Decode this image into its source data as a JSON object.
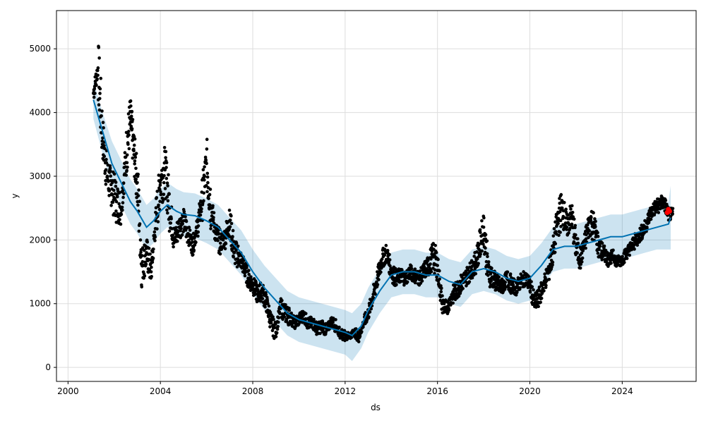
{
  "chart_data": {
    "type": "line",
    "xlabel": "ds",
    "ylabel": "y",
    "xlim": [
      1999.5,
      2027.2
    ],
    "ylim": [
      -220,
      5600
    ],
    "grid": true,
    "x_ticks": [
      2000,
      2004,
      2008,
      2012,
      2016,
      2020,
      2024
    ],
    "x_tick_labels": [
      "2000",
      "2004",
      "2008",
      "2012",
      "2016",
      "2020",
      "2024"
    ],
    "y_ticks": [
      0,
      1000,
      2000,
      3000,
      4000,
      5000
    ],
    "y_tick_labels": [
      "0",
      "1000",
      "2000",
      "3000",
      "4000",
      "5000"
    ],
    "colors": {
      "observed": "#000000",
      "forecast": "#0072B2",
      "band": "#0072B2",
      "future_observed": "#ff0000",
      "grid": "#dddddd"
    },
    "observed": {
      "x": [
        2001.1,
        2001.3,
        2001.5,
        2001.7,
        2001.9,
        2002.1,
        2002.3,
        2002.5,
        2002.7,
        2002.85,
        2003.0,
        2003.2,
        2003.4,
        2003.6,
        2003.8,
        2004.0,
        2004.2,
        2004.4,
        2004.6,
        2004.8,
        2005.0,
        2005.2,
        2005.4,
        2005.6,
        2005.8,
        2006.0,
        2006.2,
        2006.4,
        2006.6,
        2006.8,
        2007.0,
        2007.2,
        2007.4,
        2007.6,
        2007.8,
        2008.0,
        2008.2,
        2008.4,
        2008.6,
        2008.8,
        2009.0,
        2009.2,
        2009.4,
        2009.6,
        2009.8,
        2010.0,
        2010.2,
        2010.4,
        2010.6,
        2010.8,
        2011.0,
        2011.2,
        2011.4,
        2011.6,
        2011.8,
        2012.0,
        2012.2,
        2012.4,
        2012.6,
        2012.8,
        2013.0,
        2013.2,
        2013.4,
        2013.6,
        2013.8,
        2014.0,
        2014.2,
        2014.4,
        2014.6,
        2014.8,
        2015.0,
        2015.2,
        2015.4,
        2015.6,
        2015.8,
        2016.0,
        2016.2,
        2016.4,
        2016.6,
        2016.8,
        2017.0,
        2017.2,
        2017.4,
        2017.6,
        2017.8,
        2018.0,
        2018.2,
        2018.4,
        2018.6,
        2018.8,
        2019.0,
        2019.2,
        2019.4,
        2019.6,
        2019.8,
        2020.0,
        2020.2,
        2020.4,
        2020.6,
        2020.8,
        2021.0,
        2021.2,
        2021.4,
        2021.6,
        2021.8,
        2022.0,
        2022.2,
        2022.4,
        2022.6,
        2022.8,
        2023.0,
        2023.2,
        2023.4,
        2023.6,
        2023.8,
        2024.0,
        2024.2,
        2024.4,
        2024.6,
        2024.8,
        2025.0,
        2025.2,
        2025.4,
        2025.6,
        2025.8,
        2026.0
      ],
      "y": [
        4300,
        4700,
        3600,
        3000,
        2800,
        2600,
        2500,
        3300,
        3900,
        3400,
        2900,
        1600,
        1800,
        1500,
        2300,
        2900,
        3100,
        2500,
        2000,
        2200,
        2300,
        2100,
        1900,
        2200,
        2600,
        3200,
        2500,
        2100,
        1950,
        2050,
        2300,
        1800,
        1750,
        1600,
        1400,
        1300,
        1150,
        1200,
        1000,
        700,
        550,
        950,
        850,
        800,
        700,
        750,
        820,
        680,
        700,
        600,
        650,
        580,
        720,
        650,
        520,
        500,
        490,
        560,
        470,
        700,
        850,
        1100,
        1400,
        1700,
        1800,
        1500,
        1400,
        1450,
        1400,
        1500,
        1450,
        1400,
        1500,
        1600,
        1750,
        1600,
        1000,
        900,
        1100,
        1200,
        1300,
        1400,
        1500,
        1600,
        1850,
        2200,
        1500,
        1400,
        1300,
        1250,
        1400,
        1300,
        1250,
        1350,
        1400,
        1300,
        1000,
        1100,
        1300,
        1500,
        1800,
        2300,
        2500,
        2200,
        2400,
        1900,
        1700,
        2000,
        2300,
        2200,
        1850,
        1800,
        1700,
        1750,
        1650,
        1700,
        1800,
        1900,
        2000,
        2100,
        2200,
        2400,
        2500,
        2550,
        2600,
        2400
      ],
      "spread": [
        150,
        500,
        350,
        300,
        350,
        300,
        250,
        400,
        350,
        350,
        450,
        300,
        250,
        200,
        350,
        400,
        400,
        250,
        200,
        200,
        200,
        150,
        150,
        200,
        350,
        450,
        200,
        200,
        150,
        200,
        250,
        200,
        150,
        150,
        150,
        150,
        150,
        150,
        150,
        150,
        100,
        150,
        150,
        100,
        100,
        100,
        100,
        100,
        100,
        100,
        100,
        80,
        100,
        80,
        80,
        60,
        50,
        80,
        60,
        100,
        120,
        150,
        150,
        150,
        150,
        150,
        120,
        120,
        120,
        120,
        120,
        120,
        150,
        200,
        250,
        200,
        150,
        100,
        150,
        150,
        150,
        150,
        150,
        200,
        250,
        300,
        200,
        150,
        150,
        120,
        150,
        120,
        120,
        120,
        120,
        150,
        150,
        150,
        150,
        200,
        250,
        300,
        250,
        200,
        250,
        200,
        150,
        200,
        250,
        200,
        150,
        120,
        100,
        100,
        100,
        100,
        100,
        120,
        120,
        120,
        120,
        120,
        120,
        120,
        120,
        100
      ]
    },
    "forecast": {
      "x": [
        2001.1,
        2001.5,
        2001.9,
        2002.3,
        2002.7,
        2003.0,
        2003.4,
        2003.7,
        2004.0,
        2004.3,
        2004.7,
        2005.0,
        2005.5,
        2006.0,
        2006.5,
        2007.0,
        2007.5,
        2008.0,
        2008.5,
        2009.0,
        2009.5,
        2010.0,
        2010.5,
        2011.0,
        2011.5,
        2012.0,
        2012.3,
        2012.7,
        2013.0,
        2013.5,
        2014.0,
        2014.5,
        2015.0,
        2015.5,
        2016.0,
        2016.5,
        2017.0,
        2017.5,
        2018.0,
        2018.5,
        2019.0,
        2019.5,
        2020.0,
        2020.5,
        2021.0,
        2021.5,
        2022.0,
        2022.5,
        2023.0,
        2023.5,
        2024.0,
        2024.5,
        2025.0,
        2025.5,
        2026.0,
        2026.1
      ],
      "yhat": [
        4200,
        3700,
        3200,
        2900,
        2600,
        2450,
        2200,
        2300,
        2450,
        2550,
        2450,
        2400,
        2380,
        2300,
        2200,
        2000,
        1800,
        1500,
        1250,
        1050,
        850,
        750,
        700,
        650,
        600,
        550,
        500,
        650,
        900,
        1200,
        1450,
        1500,
        1500,
        1450,
        1450,
        1350,
        1300,
        1500,
        1550,
        1500,
        1400,
        1350,
        1400,
        1600,
        1850,
        1900,
        1900,
        1950,
        2000,
        2050,
        2050,
        2100,
        2150,
        2200,
        2250,
        2350
      ],
      "yhat_lower": [
        3900,
        3350,
        2850,
        2550,
        2250,
        2100,
        1850,
        1950,
        2100,
        2200,
        2100,
        2050,
        2030,
        1950,
        1850,
        1650,
        1450,
        1150,
        900,
        700,
        500,
        400,
        350,
        300,
        250,
        200,
        100,
        300,
        550,
        850,
        1100,
        1150,
        1150,
        1100,
        1100,
        1000,
        950,
        1150,
        1200,
        1150,
        1050,
        1000,
        1050,
        1250,
        1500,
        1550,
        1550,
        1600,
        1650,
        1700,
        1700,
        1750,
        1800,
        1850,
        1850,
        1850
      ],
      "yhat_upper": [
        4500,
        4000,
        3550,
        3250,
        2950,
        2800,
        2550,
        2650,
        2800,
        2900,
        2800,
        2750,
        2730,
        2650,
        2550,
        2350,
        2150,
        1850,
        1600,
        1400,
        1200,
        1100,
        1050,
        1000,
        950,
        900,
        850,
        1000,
        1250,
        1550,
        1800,
        1850,
        1850,
        1800,
        1800,
        1700,
        1650,
        1850,
        1900,
        1850,
        1750,
        1700,
        1750,
        1950,
        2200,
        2250,
        2250,
        2300,
        2350,
        2400,
        2400,
        2450,
        2500,
        2550,
        2600,
        2850
      ]
    },
    "future_observed": {
      "x": [
        2025.95,
        2026.0,
        2026.05
      ],
      "y": [
        2430,
        2480,
        2450
      ]
    }
  }
}
